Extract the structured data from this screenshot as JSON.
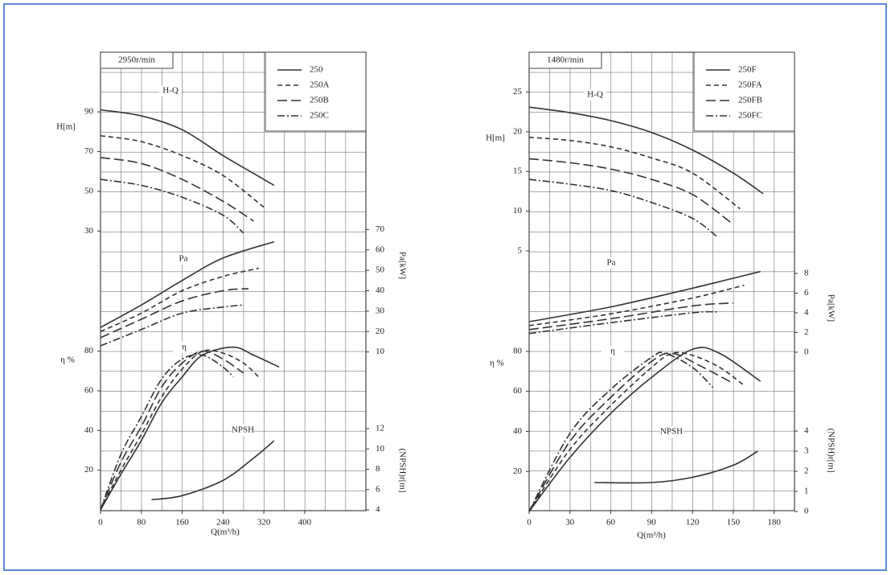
{
  "chart_data": [
    {
      "type": "line",
      "speed_label": "2950r/min",
      "xlabel": "Q(m³/h)",
      "xlim": [
        0,
        520
      ],
      "xticks": [
        0,
        80,
        160,
        240,
        320,
        400
      ],
      "ylabel": "H[m]",
      "ylim": [
        20,
        120
      ],
      "yticks": [
        30,
        50,
        70,
        90
      ],
      "y2label": "Pa[kW]",
      "y2lim": [
        0,
        80
      ],
      "y2ticks": [
        10,
        20,
        30,
        40,
        50,
        60,
        70
      ],
      "y3label": "η %",
      "y3lim": [
        0,
        90
      ],
      "y3ticks": [
        20,
        40,
        60,
        80
      ],
      "y4label": "(NPSH)r[m]",
      "y4lim": [
        4,
        12
      ],
      "y4ticks": [
        4,
        6,
        8,
        10,
        12
      ],
      "annotations": [
        "H-Q",
        "Pa",
        "η",
        "NPSH"
      ],
      "color": "#333333",
      "grid": true,
      "series": [
        {
          "name": "250",
          "dash": "solid",
          "curves": [
            {
              "axis": "y",
              "x": [
                0,
                80,
                160,
                240,
                300,
                340
              ],
              "values": [
                91,
                88,
                81,
                68,
                59,
                53
              ]
            },
            {
              "axis": "y2",
              "x": [
                0,
                80,
                160,
                240,
                340
              ],
              "values": [
                22,
                33,
                45,
                56,
                64
              ]
            },
            {
              "axis": "y3",
              "x": [
                0,
                40,
                80,
                120,
                160,
                200,
                260,
                300,
                350
              ],
              "values": [
                0,
                18,
                35,
                54,
                67,
                78,
                82,
                78,
                72
              ]
            }
          ]
        },
        {
          "name": "250A",
          "dash": "dashed",
          "curves": [
            {
              "axis": "y",
              "x": [
                0,
                80,
                160,
                240,
                320
              ],
              "values": [
                78,
                75,
                68,
                58,
                42
              ]
            },
            {
              "axis": "y2",
              "x": [
                0,
                80,
                160,
                240,
                310
              ],
              "values": [
                20,
                29,
                40,
                47,
                51
              ]
            },
            {
              "axis": "y3",
              "x": [
                0,
                40,
                80,
                120,
                160,
                200,
                240,
                280,
                310
              ],
              "values": [
                0,
                20,
                38,
                57,
                71,
                80,
                79,
                74,
                67
              ]
            }
          ]
        },
        {
          "name": "250B",
          "dash": "longdash",
          "curves": [
            {
              "axis": "y",
              "x": [
                0,
                80,
                160,
                240,
                300
              ],
              "values": [
                67,
                64,
                56,
                45,
                35
              ]
            },
            {
              "axis": "y2",
              "x": [
                0,
                80,
                160,
                240,
                290
              ],
              "values": [
                17,
                26,
                35,
                40,
                41
              ]
            },
            {
              "axis": "y3",
              "x": [
                0,
                40,
                80,
                120,
                160,
                200,
                240,
                280
              ],
              "values": [
                0,
                24,
                42,
                62,
                74,
                80,
                76,
                69
              ]
            }
          ]
        },
        {
          "name": "250C",
          "dash": "dashdot",
          "curves": [
            {
              "axis": "y",
              "x": [
                0,
                80,
                160,
                240,
                280
              ],
              "values": [
                56,
                53,
                47,
                38,
                29
              ]
            },
            {
              "axis": "y2",
              "x": [
                0,
                80,
                160,
                240,
                280
              ],
              "values": [
                13,
                21,
                29,
                32,
                33
              ]
            },
            {
              "axis": "y3",
              "x": [
                0,
                40,
                80,
                120,
                160,
                200,
                240,
                260
              ],
              "values": [
                0,
                28,
                47,
                66,
                76,
                78,
                72,
                67
              ]
            }
          ]
        }
      ],
      "npsh": {
        "axis": "y4",
        "x": [
          100,
          160,
          240,
          300,
          340
        ],
        "values": [
          5,
          5.4,
          6.9,
          9.1,
          10.8
        ]
      }
    },
    {
      "type": "line",
      "speed_label": "1480r/min",
      "xlabel": "Q(m³/h)",
      "xlim": [
        0,
        195
      ],
      "xticks": [
        0,
        30,
        60,
        90,
        120,
        150,
        180
      ],
      "ylabel": "H[m]",
      "ylim": [
        5,
        30
      ],
      "yticks": [
        5,
        10,
        15,
        20,
        25
      ],
      "y2label": "Pa[kW]",
      "y2lim": [
        0,
        8
      ],
      "y2ticks": [
        0,
        2,
        4,
        6,
        8
      ],
      "y3label": "η %",
      "y3lim": [
        0,
        90
      ],
      "y3ticks": [
        20,
        40,
        60,
        80
      ],
      "y4label": "(NPSH)r[m]",
      "y4lim": [
        0,
        4
      ],
      "y4ticks": [
        0,
        1,
        2,
        3,
        4
      ],
      "annotations": [
        "H-Q",
        "Pa",
        "η",
        "NPSH"
      ],
      "color": "#333333",
      "grid": true,
      "series": [
        {
          "name": "250F",
          "dash": "solid",
          "curves": [
            {
              "axis": "y",
              "x": [
                0,
                30,
                60,
                90,
                120,
                150,
                172
              ],
              "values": [
                23.1,
                22.4,
                21.4,
                19.9,
                17.7,
                14.8,
                12.2
              ]
            },
            {
              "axis": "y2",
              "x": [
                0,
                60,
                120,
                170
              ],
              "values": [
                3.1,
                4.6,
                6.5,
                8.2
              ]
            },
            {
              "axis": "y3",
              "x": [
                0,
                30,
                60,
                90,
                120,
                140,
                170
              ],
              "values": [
                0,
                27,
                49,
                67,
                81,
                79,
                65
              ]
            }
          ]
        },
        {
          "name": "250FA",
          "dash": "dashed",
          "curves": [
            {
              "axis": "y",
              "x": [
                0,
                30,
                60,
                90,
                120,
                155
              ],
              "values": [
                19.3,
                18.9,
                18.1,
                16.7,
                14.8,
                10.3
              ]
            },
            {
              "axis": "y2",
              "x": [
                0,
                60,
                120,
                158
              ],
              "values": [
                2.7,
                3.9,
                5.5,
                6.8
              ]
            },
            {
              "axis": "y3",
              "x": [
                0,
                30,
                60,
                90,
                105,
                120,
                140,
                158
              ],
              "values": [
                0,
                31,
                53,
                72,
                79,
                78,
                72,
                63
              ]
            }
          ]
        },
        {
          "name": "250FB",
          "dash": "longdash",
          "curves": [
            {
              "axis": "y",
              "x": [
                0,
                30,
                60,
                90,
                120,
                148
              ],
              "values": [
                16.6,
                16.1,
                15.3,
                14,
                12.1,
                8.6
              ]
            },
            {
              "axis": "y2",
              "x": [
                0,
                60,
                120,
                150
              ],
              "values": [
                2.3,
                3.4,
                4.7,
                5
              ]
            },
            {
              "axis": "y3",
              "x": [
                0,
                30,
                60,
                90,
                105,
                125,
                150
              ],
              "values": [
                0,
                35,
                57,
                75,
                79,
                73,
                64
              ]
            }
          ]
        },
        {
          "name": "250FC",
          "dash": "dashdot",
          "curves": [
            {
              "axis": "y",
              "x": [
                0,
                30,
                60,
                90,
                120,
                138
              ],
              "values": [
                14,
                13.4,
                12.6,
                11.1,
                9.1,
                6.8
              ]
            },
            {
              "axis": "y2",
              "x": [
                0,
                60,
                120,
                138
              ],
              "values": [
                1.9,
                3,
                4,
                4.1
              ]
            },
            {
              "axis": "y3",
              "x": [
                0,
                30,
                60,
                90,
                100,
                120,
                135
              ],
              "values": [
                0,
                39,
                61,
                77,
                79,
                72,
                62
              ]
            }
          ]
        }
      ],
      "npsh": {
        "axis": "y4",
        "x": [
          48,
          90,
          120,
          150,
          168
        ],
        "values": [
          1.44,
          1.44,
          1.7,
          2.3,
          3
        ]
      }
    }
  ]
}
